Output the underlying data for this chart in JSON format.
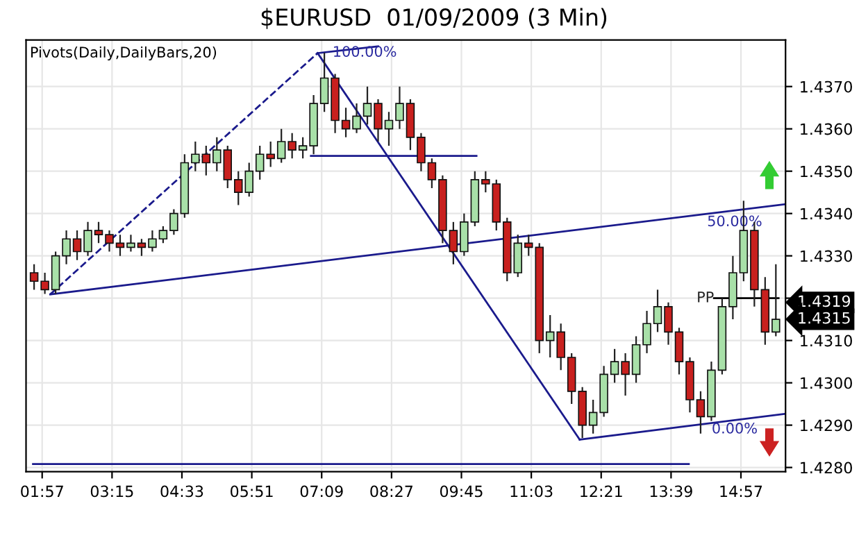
{
  "chart_data": {
    "type": "candlestick",
    "title": "$EURUSD  01/09/2009 (3 Min)",
    "annotations": [
      "Pivots(Daily,DailyBars,20)",
      {
        "text": "100.00%",
        "x": 7.95,
        "y": 1.4378
      },
      "50.00%",
      "0.00%",
      {
        "text": "PP",
        "x": 14.45,
        "y": 1.432
      },
      "1.4319",
      "1.4315"
    ],
    "colors": [
      "#c8201e",
      "#c8201e",
      "#a8e0a8",
      "#a8e0a8",
      "#c8201e",
      "#a8e0a8",
      "#c8201e",
      "#c8201e",
      "#c8201e",
      "#a8e0a8",
      "#c8201e",
      "#a8e0a8",
      "#a8e0a8",
      "#a8e0a8",
      "#a8e0a8",
      "#a8e0a8",
      "#c8201e",
      "#a8e0a8",
      "#c8201e",
      "#c8201e",
      "#a8e0a8",
      "#a8e0a8",
      "#c8201e",
      "#a8e0a8",
      "#c8201e",
      "#a8e0a8",
      "#a8e0a8",
      "#a8e0a8",
      "#c8201e",
      "#c8201e",
      "#a8e0a8",
      "#a8e0a8",
      "#c8201e",
      "#a8e0a8",
      "#a8e0a8",
      "#c8201e",
      "#c8201e",
      "#c8201e",
      "#c8201e",
      "#c8201e",
      "#a8e0a8",
      "#a8e0a8",
      "#c8201e",
      "#c8201e",
      "#c8201e",
      "#a8e0a8",
      "#c8201e",
      "#c8201e",
      "#a8e0a8",
      "#c8201e",
      "#c8201e",
      "#c8201e",
      "#a8e0a8",
      "#a8e0a8",
      "#a8e0a8",
      "#c8201e",
      "#a8e0a8",
      "#a8e0a8",
      "#a8e0a8",
      "#c8201e",
      "#c8201e",
      "#c8201e",
      "#c8201e",
      "#a8e0a8",
      "#a8e0a8",
      "#a8e0a8",
      "#a8e0a8",
      "#c8201e",
      "#c8201e",
      "#a8e0a8"
    ],
    "x": [
      1.8,
      2.0,
      2.2,
      2.4,
      2.6,
      2.8,
      3.0,
      3.2,
      3.4,
      3.6,
      3.8,
      4.0,
      4.2,
      4.4,
      4.6,
      4.8,
      5.0,
      5.2,
      5.4,
      5.6,
      5.8,
      6.0,
      6.2,
      6.4,
      6.6,
      6.8,
      7.0,
      7.2,
      7.4,
      7.6,
      7.8,
      8.0,
      8.2,
      8.4,
      8.6,
      8.8,
      9.0,
      9.2,
      9.4,
      9.6,
      9.8,
      10.0,
      10.2,
      10.4,
      10.6,
      10.8,
      11.0,
      11.2,
      11.4,
      11.6,
      11.8,
      12.0,
      12.2,
      12.4,
      12.6,
      12.8,
      13.0,
      13.2,
      13.4,
      13.6,
      13.8,
      14.0,
      14.2,
      14.4,
      14.6,
      14.8,
      15.0,
      15.2,
      15.4,
      15.6
    ],
    "ohlc": [
      [
        1.4326,
        1.4328,
        1.4322,
        1.4324
      ],
      [
        1.4324,
        1.4326,
        1.4321,
        1.4322
      ],
      [
        1.4322,
        1.4331,
        1.4321,
        1.433
      ],
      [
        1.433,
        1.4336,
        1.4328,
        1.4334
      ],
      [
        1.4334,
        1.4336,
        1.4329,
        1.4331
      ],
      [
        1.4331,
        1.4338,
        1.433,
        1.4336
      ],
      [
        1.4336,
        1.4338,
        1.4333,
        1.4335
      ],
      [
        1.4335,
        1.4336,
        1.4331,
        1.4333
      ],
      [
        1.4333,
        1.4335,
        1.433,
        1.4332
      ],
      [
        1.4332,
        1.4335,
        1.4331,
        1.4333
      ],
      [
        1.4333,
        1.4334,
        1.433,
        1.4332
      ],
      [
        1.4332,
        1.4336,
        1.4331,
        1.4334
      ],
      [
        1.4334,
        1.4337,
        1.4333,
        1.4336
      ],
      [
        1.4336,
        1.4341,
        1.4335,
        1.434
      ],
      [
        1.434,
        1.4354,
        1.4339,
        1.4352
      ],
      [
        1.4352,
        1.4357,
        1.435,
        1.4354
      ],
      [
        1.4354,
        1.4356,
        1.4349,
        1.4352
      ],
      [
        1.4352,
        1.4358,
        1.435,
        1.4355
      ],
      [
        1.4355,
        1.4356,
        1.4346,
        1.4348
      ],
      [
        1.4348,
        1.435,
        1.4342,
        1.4345
      ],
      [
        1.4345,
        1.4352,
        1.4344,
        1.435
      ],
      [
        1.435,
        1.4356,
        1.4348,
        1.4354
      ],
      [
        1.4354,
        1.4357,
        1.4351,
        1.4353
      ],
      [
        1.4353,
        1.436,
        1.4352,
        1.4357
      ],
      [
        1.4357,
        1.4359,
        1.4353,
        1.4355
      ],
      [
        1.4355,
        1.4358,
        1.4353,
        1.4356
      ],
      [
        1.4356,
        1.4368,
        1.4354,
        1.4366
      ],
      [
        1.4366,
        1.4378,
        1.4364,
        1.4372
      ],
      [
        1.4372,
        1.4373,
        1.4359,
        1.4362
      ],
      [
        1.4362,
        1.4365,
        1.4358,
        1.436
      ],
      [
        1.436,
        1.4366,
        1.4359,
        1.4363
      ],
      [
        1.4363,
        1.437,
        1.4361,
        1.4366
      ],
      [
        1.4366,
        1.4367,
        1.4357,
        1.436
      ],
      [
        1.436,
        1.4364,
        1.4356,
        1.4362
      ],
      [
        1.4362,
        1.437,
        1.436,
        1.4366
      ],
      [
        1.4366,
        1.4367,
        1.4355,
        1.4358
      ],
      [
        1.4358,
        1.4359,
        1.435,
        1.4352
      ],
      [
        1.4352,
        1.4353,
        1.4346,
        1.4348
      ],
      [
        1.4348,
        1.4349,
        1.4333,
        1.4336
      ],
      [
        1.4336,
        1.4338,
        1.4328,
        1.4331
      ],
      [
        1.4331,
        1.434,
        1.433,
        1.4338
      ],
      [
        1.4338,
        1.435,
        1.4337,
        1.4348
      ],
      [
        1.4348,
        1.435,
        1.4345,
        1.4347
      ],
      [
        1.4347,
        1.4348,
        1.4336,
        1.4338
      ],
      [
        1.4338,
        1.4339,
        1.4324,
        1.4326
      ],
      [
        1.4326,
        1.4335,
        1.4325,
        1.4333
      ],
      [
        1.4333,
        1.4335,
        1.433,
        1.4332
      ],
      [
        1.4332,
        1.4333,
        1.4307,
        1.431
      ],
      [
        1.431,
        1.4316,
        1.4306,
        1.4312
      ],
      [
        1.4312,
        1.4314,
        1.4303,
        1.4306
      ],
      [
        1.4306,
        1.4307,
        1.4295,
        1.4298
      ],
      [
        1.4298,
        1.4299,
        1.4287,
        1.429
      ],
      [
        1.429,
        1.4296,
        1.4288,
        1.4293
      ],
      [
        1.4293,
        1.4304,
        1.4292,
        1.4302
      ],
      [
        1.4302,
        1.4308,
        1.43,
        1.4305
      ],
      [
        1.4305,
        1.4307,
        1.4297,
        1.4302
      ],
      [
        1.4302,
        1.4311,
        1.43,
        1.4309
      ],
      [
        1.4309,
        1.4317,
        1.4307,
        1.4314
      ],
      [
        1.4314,
        1.4322,
        1.4312,
        1.4318
      ],
      [
        1.4318,
        1.4319,
        1.4309,
        1.4312
      ],
      [
        1.4312,
        1.4313,
        1.4302,
        1.4305
      ],
      [
        1.4305,
        1.4306,
        1.4293,
        1.4296
      ],
      [
        1.4296,
        1.4298,
        1.4288,
        1.4292
      ],
      [
        1.4292,
        1.4305,
        1.4291,
        1.4303
      ],
      [
        1.4303,
        1.432,
        1.4302,
        1.4318
      ],
      [
        1.4318,
        1.433,
        1.4315,
        1.4326
      ],
      [
        1.4326,
        1.4343,
        1.4324,
        1.4336
      ],
      [
        1.4336,
        1.4338,
        1.4318,
        1.4322
      ],
      [
        1.4322,
        1.4325,
        1.4309,
        1.4312
      ],
      [
        1.4312,
        1.4328,
        1.4311,
        1.4315
      ]
    ],
    "series": [
      {
        "type": "line",
        "color": "#1a1a8c",
        "line_style": "dashed",
        "x": [
          2.1,
          7.075
        ],
        "values": [
          1.43209,
          1.43779
        ]
      },
      {
        "type": "line",
        "color": "#1a1a8c",
        "line_style": "solid",
        "x": [
          7.075,
          8.2
        ],
        "values": [
          1.43779,
          1.43795
        ]
      },
      {
        "type": "line",
        "color": "#1a1a8c",
        "line_style": "solid",
        "x": [
          2.1,
          15.78
        ],
        "values": [
          1.43209,
          1.43422
        ]
      },
      {
        "type": "line",
        "color": "#1a1a8c",
        "line_style": "solid",
        "x": [
          7.075,
          11.95
        ],
        "values": [
          1.43779,
          1.42866
        ]
      },
      {
        "type": "line",
        "color": "#1a1a8c",
        "line_style": "solid",
        "x": [
          11.95,
          15.78
        ],
        "values": [
          1.42866,
          1.42927
        ]
      },
      {
        "type": "line",
        "color": "#1a1a8c",
        "line_style": "solid",
        "x": [
          6.95,
          10.03
        ],
        "values": [
          1.43536,
          1.43536
        ]
      },
      {
        "type": "line",
        "color": "#1a1a8c",
        "line_style": "solid",
        "x": [
          1.78,
          13.98
        ],
        "values": [
          1.42808,
          1.42808
        ]
      },
      {
        "type": "line",
        "color": "#000000",
        "line_style": "solid",
        "x": [
          14.45,
          15.65
        ],
        "values": [
          1.432,
          1.432
        ]
      }
    ],
    "xlim": [
      1.65,
      15.78
    ],
    "ylim": [
      1.4279,
      1.4381
    ],
    "xticks": [
      {
        "value": 1.95,
        "label": "01:57"
      },
      {
        "value": 3.25,
        "label": "03:15"
      },
      {
        "value": 4.55,
        "label": "04:33"
      },
      {
        "value": 5.85,
        "label": "05:51"
      },
      {
        "value": 7.15,
        "label": "07:09"
      },
      {
        "value": 8.45,
        "label": "08:27"
      },
      {
        "value": 9.75,
        "label": "09:45"
      },
      {
        "value": 11.05,
        "label": "11:03"
      },
      {
        "value": 12.35,
        "label": "12:21"
      },
      {
        "value": 13.65,
        "label": "13:39"
      },
      {
        "value": 14.95,
        "label": "14:57"
      }
    ],
    "yticks": [
      {
        "value": 1.428,
        "label": "1.4280"
      },
      {
        "value": 1.429,
        "label": "1.4290"
      },
      {
        "value": 1.43,
        "label": "1.4300"
      },
      {
        "value": 1.431,
        "label": "1.4310"
      },
      {
        "value": 1.432,
        "label": null
      },
      {
        "value": 1.433,
        "label": "1.4330"
      },
      {
        "value": 1.434,
        "label": "1.4340"
      },
      {
        "value": 1.435,
        "label": "1.4350"
      },
      {
        "value": 1.436,
        "label": "1.4360"
      },
      {
        "value": 1.437,
        "label": "1.4370"
      }
    ],
    "grid": true,
    "marker": "none"
  }
}
